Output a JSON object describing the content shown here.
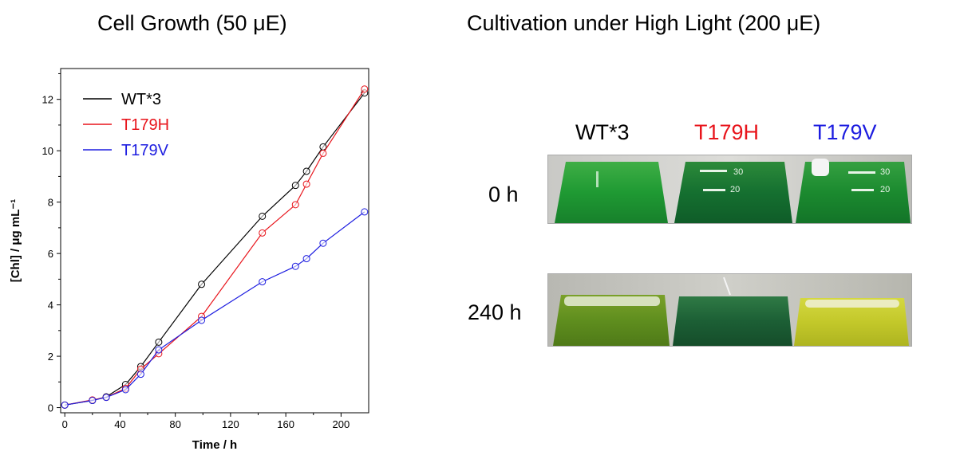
{
  "left_panel": {
    "title": "Cell Growth (50 μE)"
  },
  "chart_data": {
    "type": "line",
    "title": "Cell Growth (50 μE)",
    "xlabel": "Time / h",
    "ylabel": "[Chl] / μg mL⁻¹",
    "xlim": [
      -3,
      220
    ],
    "ylim": [
      -0.2,
      13.2
    ],
    "xticks": [
      0,
      40,
      80,
      120,
      160,
      200
    ],
    "yticks": [
      0,
      2,
      4,
      6,
      8,
      10,
      12
    ],
    "grid": false,
    "legend_position": "top-left",
    "series": [
      {
        "name": "WT*3",
        "color": "#000000",
        "points": [
          [
            0,
            0.1
          ],
          [
            20,
            0.28
          ],
          [
            30,
            0.42
          ],
          [
            44,
            0.9
          ],
          [
            55,
            1.6
          ],
          [
            68,
            2.55
          ],
          [
            99,
            4.8
          ],
          [
            143,
            7.45
          ],
          [
            167,
            8.65
          ],
          [
            175,
            9.2
          ],
          [
            187,
            10.15
          ],
          [
            217,
            12.25
          ]
        ]
      },
      {
        "name": "T179H",
        "color": "#e8141b",
        "points": [
          [
            0,
            0.1
          ],
          [
            20,
            0.3
          ],
          [
            30,
            0.4
          ],
          [
            44,
            0.75
          ],
          [
            55,
            1.5
          ],
          [
            68,
            2.1
          ],
          [
            99,
            3.55
          ],
          [
            143,
            6.8
          ],
          [
            167,
            7.9
          ],
          [
            175,
            8.7
          ],
          [
            187,
            9.9
          ],
          [
            217,
            12.4
          ]
        ]
      },
      {
        "name": "T179V",
        "color": "#1d1de0",
        "points": [
          [
            0,
            0.1
          ],
          [
            20,
            0.28
          ],
          [
            30,
            0.4
          ],
          [
            44,
            0.7
          ],
          [
            55,
            1.3
          ],
          [
            68,
            2.25
          ],
          [
            99,
            3.4
          ],
          [
            143,
            4.9
          ],
          [
            167,
            5.5
          ],
          [
            175,
            5.8
          ],
          [
            187,
            6.4
          ],
          [
            217,
            7.62
          ]
        ]
      }
    ]
  },
  "right_panel": {
    "title": "Cultivation under High Light (200 μE)",
    "columns": [
      {
        "label": "WT*3",
        "color": "#000000"
      },
      {
        "label": "T179H",
        "color": "#e8141b"
      },
      {
        "label": "T179V",
        "color": "#1d1de0"
      }
    ],
    "rows": [
      {
        "label": "0 h"
      },
      {
        "label": "240 h"
      }
    ]
  }
}
